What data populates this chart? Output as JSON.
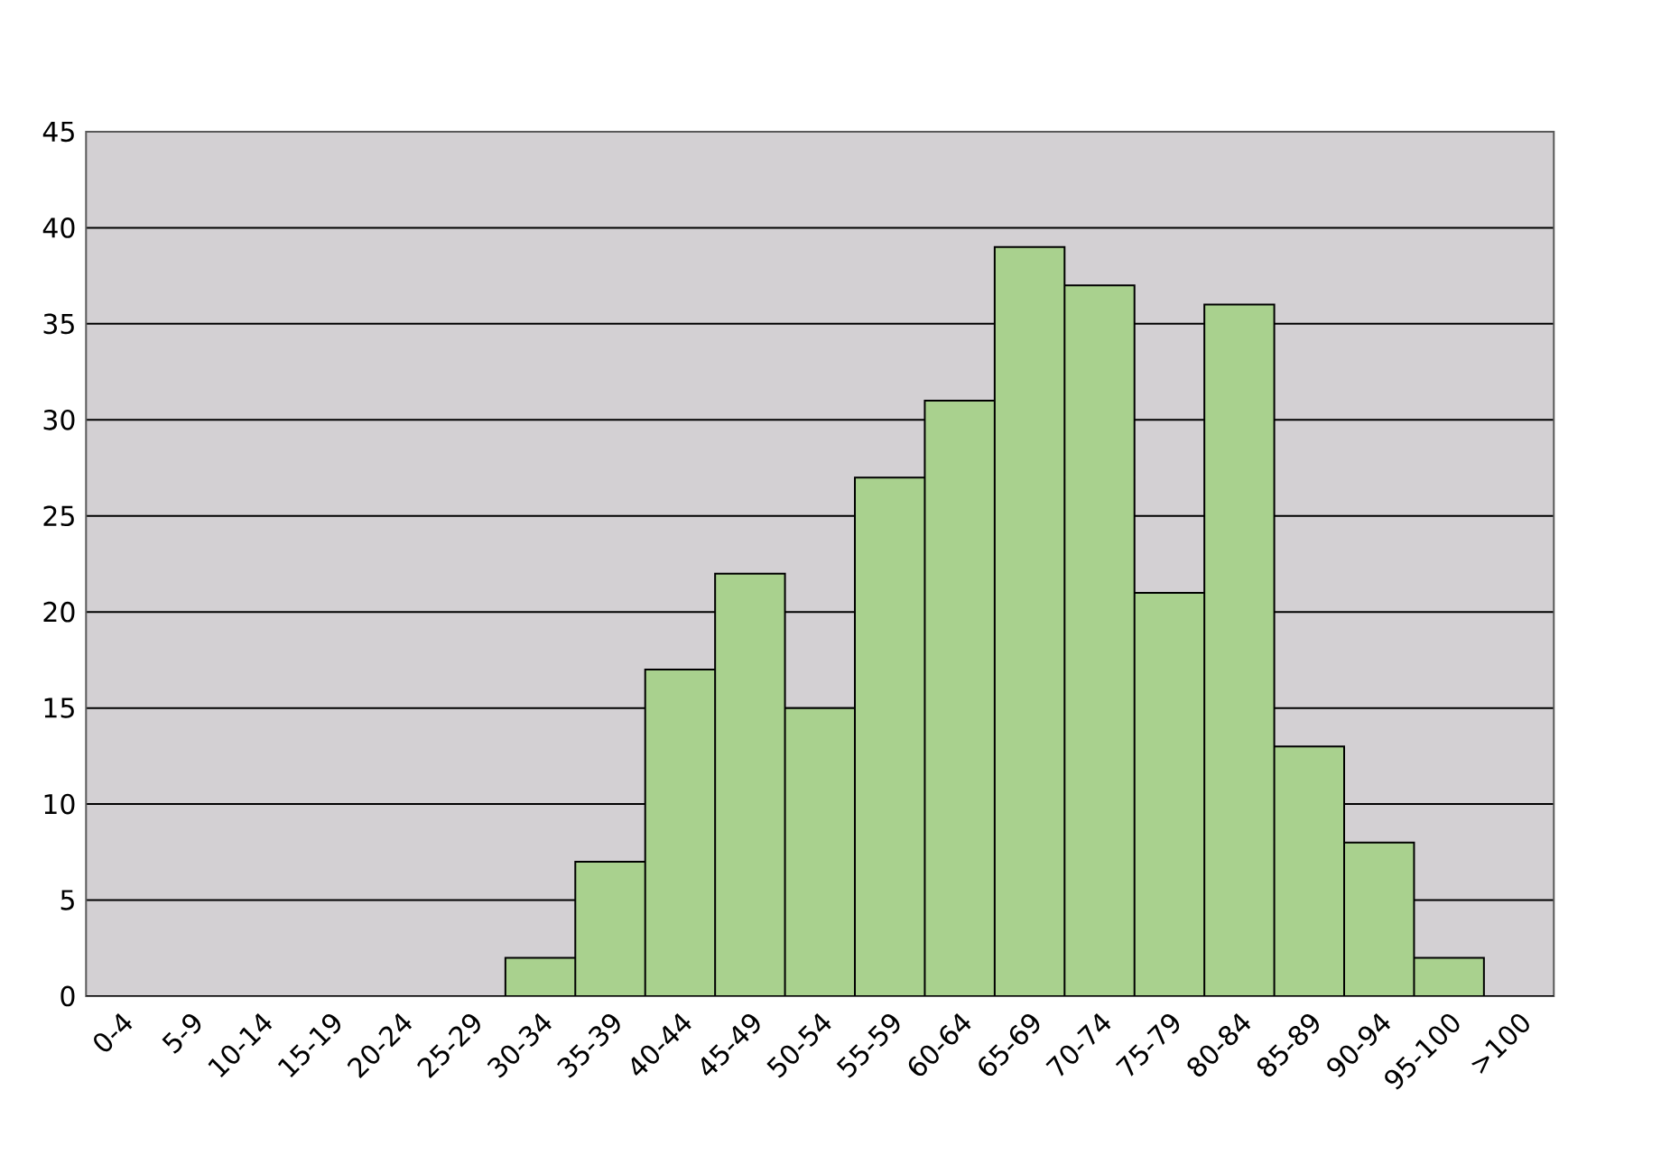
{
  "chart_data": {
    "type": "bar",
    "categories": [
      "0-4",
      "5-9",
      "10-14",
      "15-19",
      "20-24",
      "25-29",
      "30-34",
      "35-39",
      "40-44",
      "45-49",
      "50-54",
      "55-59",
      "60-64",
      "65-69",
      "70-74",
      "75-79",
      "80-84",
      "85-89",
      "90-94",
      "95-100",
      ">100"
    ],
    "values": [
      0,
      0,
      0,
      0,
      0,
      0,
      2,
      7,
      17,
      22,
      15,
      27,
      31,
      39,
      37,
      21,
      36,
      13,
      8,
      2,
      0
    ],
    "color": "#a9d18e",
    "ylim": [
      0,
      45
    ],
    "yticks": [
      0,
      5,
      10,
      15,
      20,
      25,
      30,
      35,
      40,
      45
    ],
    "grid": "y"
  }
}
